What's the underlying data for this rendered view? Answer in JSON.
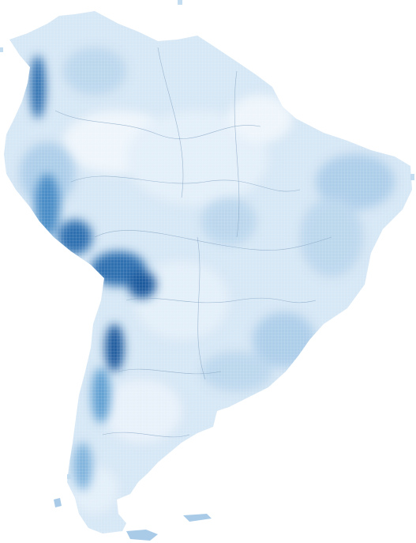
{
  "map": {
    "region": "South America",
    "style": "choropleth heatmap grid",
    "background_color": "#ffffff",
    "colors": {
      "lowest": "#eef5fb",
      "low": "#d6e7f5",
      "mid": "#a9cbe8",
      "high": "#5f9fd1",
      "highest": "#1a5a9e",
      "border_lines": "#7f9fbf"
    },
    "legend_visible": false,
    "title_visible": false
  }
}
